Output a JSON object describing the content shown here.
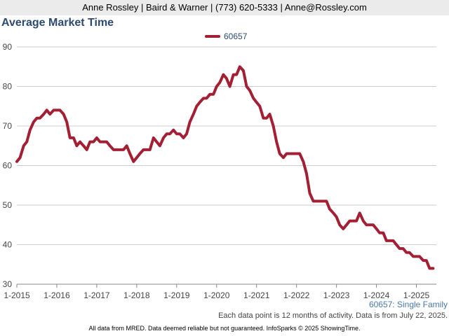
{
  "header": {
    "text": "Anne Rossley | Baird & Warner | (773) 620-5333 | Anne@Rossley.com"
  },
  "series_caption": "60657: Single Family",
  "data_note": "Each data point is 12 months of activity. Data is from July 22, 2025.",
  "footer": "All data from MRED. Data deemed reliable but not guaranteed. InfoSparks © 2025 ShowingTime.",
  "colors": {
    "series": "#a31f34",
    "title": "#2c4a72",
    "grid": "#cccccc"
  },
  "chart_data": {
    "type": "line",
    "title": "Average Market Time",
    "xlabel": "",
    "ylabel": "",
    "ylim": [
      30,
      90
    ],
    "yticks": [
      30,
      40,
      50,
      60,
      70,
      80,
      90
    ],
    "xlim": [
      2015.0,
      2025.5
    ],
    "xticks": [
      {
        "value": 2015,
        "label": "1-2015"
      },
      {
        "value": 2016,
        "label": "1-2016"
      },
      {
        "value": 2017,
        "label": "1-2017"
      },
      {
        "value": 2018,
        "label": "1-2018"
      },
      {
        "value": 2019,
        "label": "1-2019"
      },
      {
        "value": 2020,
        "label": "1-2020"
      },
      {
        "value": 2021,
        "label": "1-2021"
      },
      {
        "value": 2022,
        "label": "1-2022"
      },
      {
        "value": 2023,
        "label": "1-2023"
      },
      {
        "value": 2024,
        "label": "1-2024"
      },
      {
        "value": 2025,
        "label": "1-2025"
      }
    ],
    "grid": true,
    "legend": "top-center",
    "series": [
      {
        "name": "60657",
        "x": [
          2015.0,
          2015.08,
          2015.17,
          2015.25,
          2015.33,
          2015.42,
          2015.5,
          2015.58,
          2015.67,
          2015.75,
          2015.83,
          2015.92,
          2016.0,
          2016.08,
          2016.17,
          2016.25,
          2016.33,
          2016.42,
          2016.5,
          2016.58,
          2016.67,
          2016.75,
          2016.83,
          2016.92,
          2017.0,
          2017.08,
          2017.17,
          2017.25,
          2017.33,
          2017.42,
          2017.5,
          2017.58,
          2017.67,
          2017.75,
          2017.83,
          2017.92,
          2018.0,
          2018.08,
          2018.17,
          2018.25,
          2018.33,
          2018.42,
          2018.5,
          2018.58,
          2018.67,
          2018.75,
          2018.83,
          2018.92,
          2019.0,
          2019.08,
          2019.17,
          2019.25,
          2019.33,
          2019.42,
          2019.5,
          2019.58,
          2019.67,
          2019.75,
          2019.83,
          2019.92,
          2020.0,
          2020.08,
          2020.17,
          2020.25,
          2020.33,
          2020.42,
          2020.5,
          2020.58,
          2020.67,
          2020.75,
          2020.83,
          2020.92,
          2021.0,
          2021.08,
          2021.17,
          2021.25,
          2021.33,
          2021.42,
          2021.5,
          2021.58,
          2021.67,
          2021.75,
          2021.83,
          2021.92,
          2022.0,
          2022.08,
          2022.17,
          2022.25,
          2022.33,
          2022.42,
          2022.5,
          2022.58,
          2022.67,
          2022.75,
          2022.83,
          2022.92,
          2023.0,
          2023.08,
          2023.17,
          2023.25,
          2023.33,
          2023.42,
          2023.5,
          2023.58,
          2023.67,
          2023.75,
          2023.83,
          2023.92,
          2024.0,
          2024.08,
          2024.17,
          2024.25,
          2024.33,
          2024.42,
          2024.5,
          2024.58,
          2024.67,
          2024.75,
          2024.83,
          2024.92,
          2025.0,
          2025.08,
          2025.17,
          2025.25,
          2025.33,
          2025.42
        ],
        "values": [
          61,
          62,
          65,
          66,
          69,
          71,
          72,
          72,
          73,
          74,
          73,
          74,
          74,
          74,
          73,
          71,
          67,
          67,
          65,
          66,
          65,
          64,
          66,
          66,
          67,
          66,
          66,
          66,
          65,
          64,
          64,
          64,
          64,
          65,
          63,
          61,
          62,
          63,
          64,
          64,
          64,
          67,
          66,
          65,
          67,
          68,
          68,
          69,
          68,
          68,
          67,
          68,
          71,
          73,
          75,
          76,
          77,
          77,
          78,
          78,
          80,
          81,
          83,
          82,
          80,
          83,
          83,
          85,
          84,
          80,
          79,
          77,
          76,
          75,
          72,
          72,
          73,
          70,
          66,
          63,
          62,
          63,
          63,
          63,
          63,
          63,
          61,
          58,
          53,
          51,
          51,
          51,
          51,
          51,
          49,
          48,
          47,
          45,
          44,
          45,
          46,
          46,
          46,
          48,
          46,
          45,
          45,
          45,
          44,
          43,
          43,
          41,
          41,
          41,
          40,
          39,
          39,
          38,
          38,
          37,
          37,
          37,
          36,
          36,
          34,
          34
        ]
      }
    ]
  }
}
